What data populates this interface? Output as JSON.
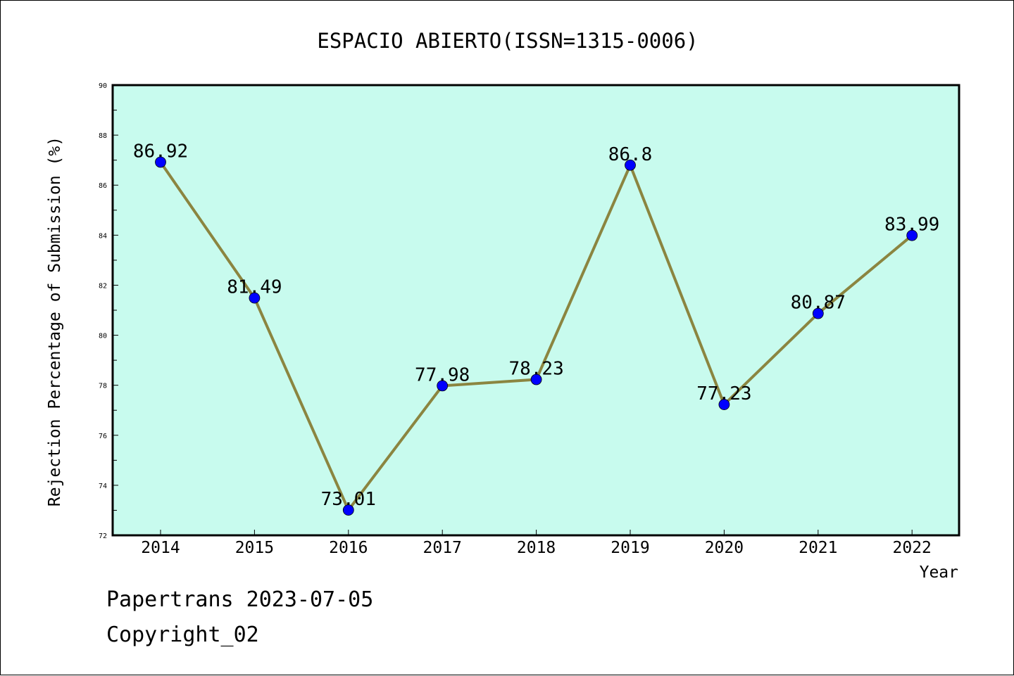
{
  "chart_data": {
    "type": "line",
    "title": "ESPACIO ABIERTO(ISSN=1315-0006)",
    "xlabel": "Year",
    "ylabel": "Rejection Percentage of Submission (%)",
    "categories": [
      "2014",
      "2015",
      "2016",
      "2017",
      "2018",
      "2019",
      "2020",
      "2021",
      "2022"
    ],
    "values": [
      86.92,
      81.49,
      73.01,
      77.98,
      78.23,
      86.8,
      77.23,
      80.87,
      83.99
    ],
    "data_labels": [
      "86.92",
      "81.49",
      "73.01",
      "77.98",
      "78.23",
      "86.8",
      "77.23",
      "80.87",
      "83.99"
    ],
    "ylim": [
      72,
      90
    ],
    "yticks": [
      "72",
      "74",
      "76",
      "78",
      "80",
      "82",
      "84",
      "86",
      "88",
      "90"
    ],
    "grid": false,
    "legend": "none",
    "colors": {
      "plot_background": "#c8fbee",
      "line": "#8b8540",
      "marker": "#0000ff"
    }
  },
  "footer": {
    "line1": "Papertrans 2023-07-05",
    "line2": "Copyright_02"
  }
}
